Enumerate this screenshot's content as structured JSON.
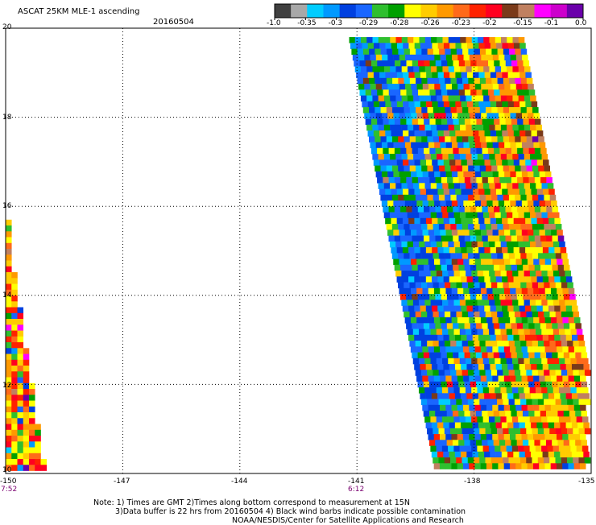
{
  "header": {
    "title": "ASCAT 25KM MLE-1 ascending",
    "date": "20160504"
  },
  "colorbar": {
    "labels": [
      "-1.0",
      "-0.35",
      "-0.3",
      "-0.29",
      "-0.28",
      "-0.26",
      "-0.23",
      "-0.2",
      "-0.15",
      "-0.1",
      "0.0"
    ],
    "colors": [
      "#404040",
      "#a8a8a8",
      "#00ccff",
      "#0099ff",
      "#0040e0",
      "#1a66ff",
      "#2fbf2f",
      "#00a000",
      "#ffff00",
      "#ffcc00",
      "#ff9900",
      "#ff6a1a",
      "#ff2200",
      "#ff0020",
      "#7a3a1a",
      "#c08060",
      "#ff00ff",
      "#cc00cc",
      "#6a00aa"
    ]
  },
  "axes": {
    "y_ticks": [
      "20",
      "18",
      "16",
      "14",
      "12",
      "10"
    ],
    "x_ticks": [
      "-150",
      "-147",
      "-144",
      "-141",
      "-138",
      "-135"
    ],
    "x_times": [
      {
        "lon": "-150",
        "time": "7:52"
      },
      {
        "lon": "-141",
        "time": "6:12"
      }
    ]
  },
  "swaths": {
    "east": {
      "lat_top": 19.8,
      "lat_bottom": 10.0,
      "west_edge_top": -141.2,
      "west_edge_bottom": -139.0,
      "width_deg": 4.6
    },
    "west": {
      "lat_top": 15.7,
      "lat_bottom": 10.0,
      "lon_west": -150.0,
      "east_edge_top": -149.9,
      "east_edge_bottom": -148.9
    }
  },
  "notes": {
    "line1": "Note: 1) Times are GMT 2)Times along bottom correspond to measurement at 15N",
    "line2": "3)Data buffer is 22 hrs from 20160504 4) Black wind barbs indicate possible contamination",
    "line3": "NOAA/NESDIS/Center for Satellite Applications and Research"
  }
}
